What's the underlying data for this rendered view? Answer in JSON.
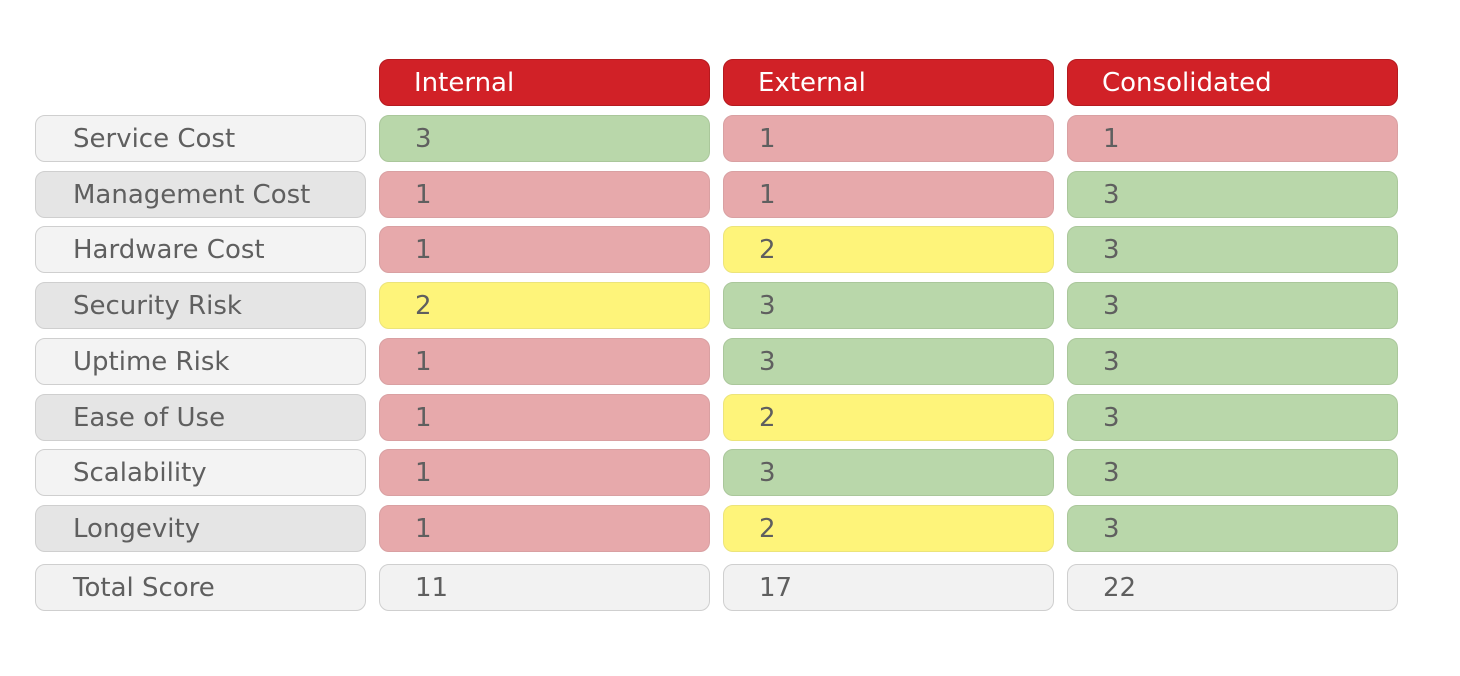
{
  "chart_data": {
    "type": "table",
    "columns": [
      "Internal",
      "External",
      "Consolidated"
    ],
    "rows": [
      {
        "label": "Service Cost",
        "values": [
          3,
          1,
          1
        ]
      },
      {
        "label": "Management Cost",
        "values": [
          1,
          1,
          3
        ]
      },
      {
        "label": "Hardware Cost",
        "values": [
          1,
          2,
          3
        ]
      },
      {
        "label": "Security Risk",
        "values": [
          2,
          3,
          3
        ]
      },
      {
        "label": "Uptime Risk",
        "values": [
          1,
          3,
          3
        ]
      },
      {
        "label": "Ease of Use",
        "values": [
          1,
          2,
          3
        ]
      },
      {
        "label": "Scalability",
        "values": [
          1,
          3,
          3
        ]
      },
      {
        "label": "Longevity",
        "values": [
          1,
          2,
          3
        ]
      }
    ],
    "total": {
      "label": "Total Score",
      "values": [
        11,
        17,
        22
      ]
    },
    "colors": {
      "header": "#d12127",
      "score_1": "#e7a9ab",
      "score_2": "#fef47a",
      "score_3": "#b9d7aa"
    }
  }
}
